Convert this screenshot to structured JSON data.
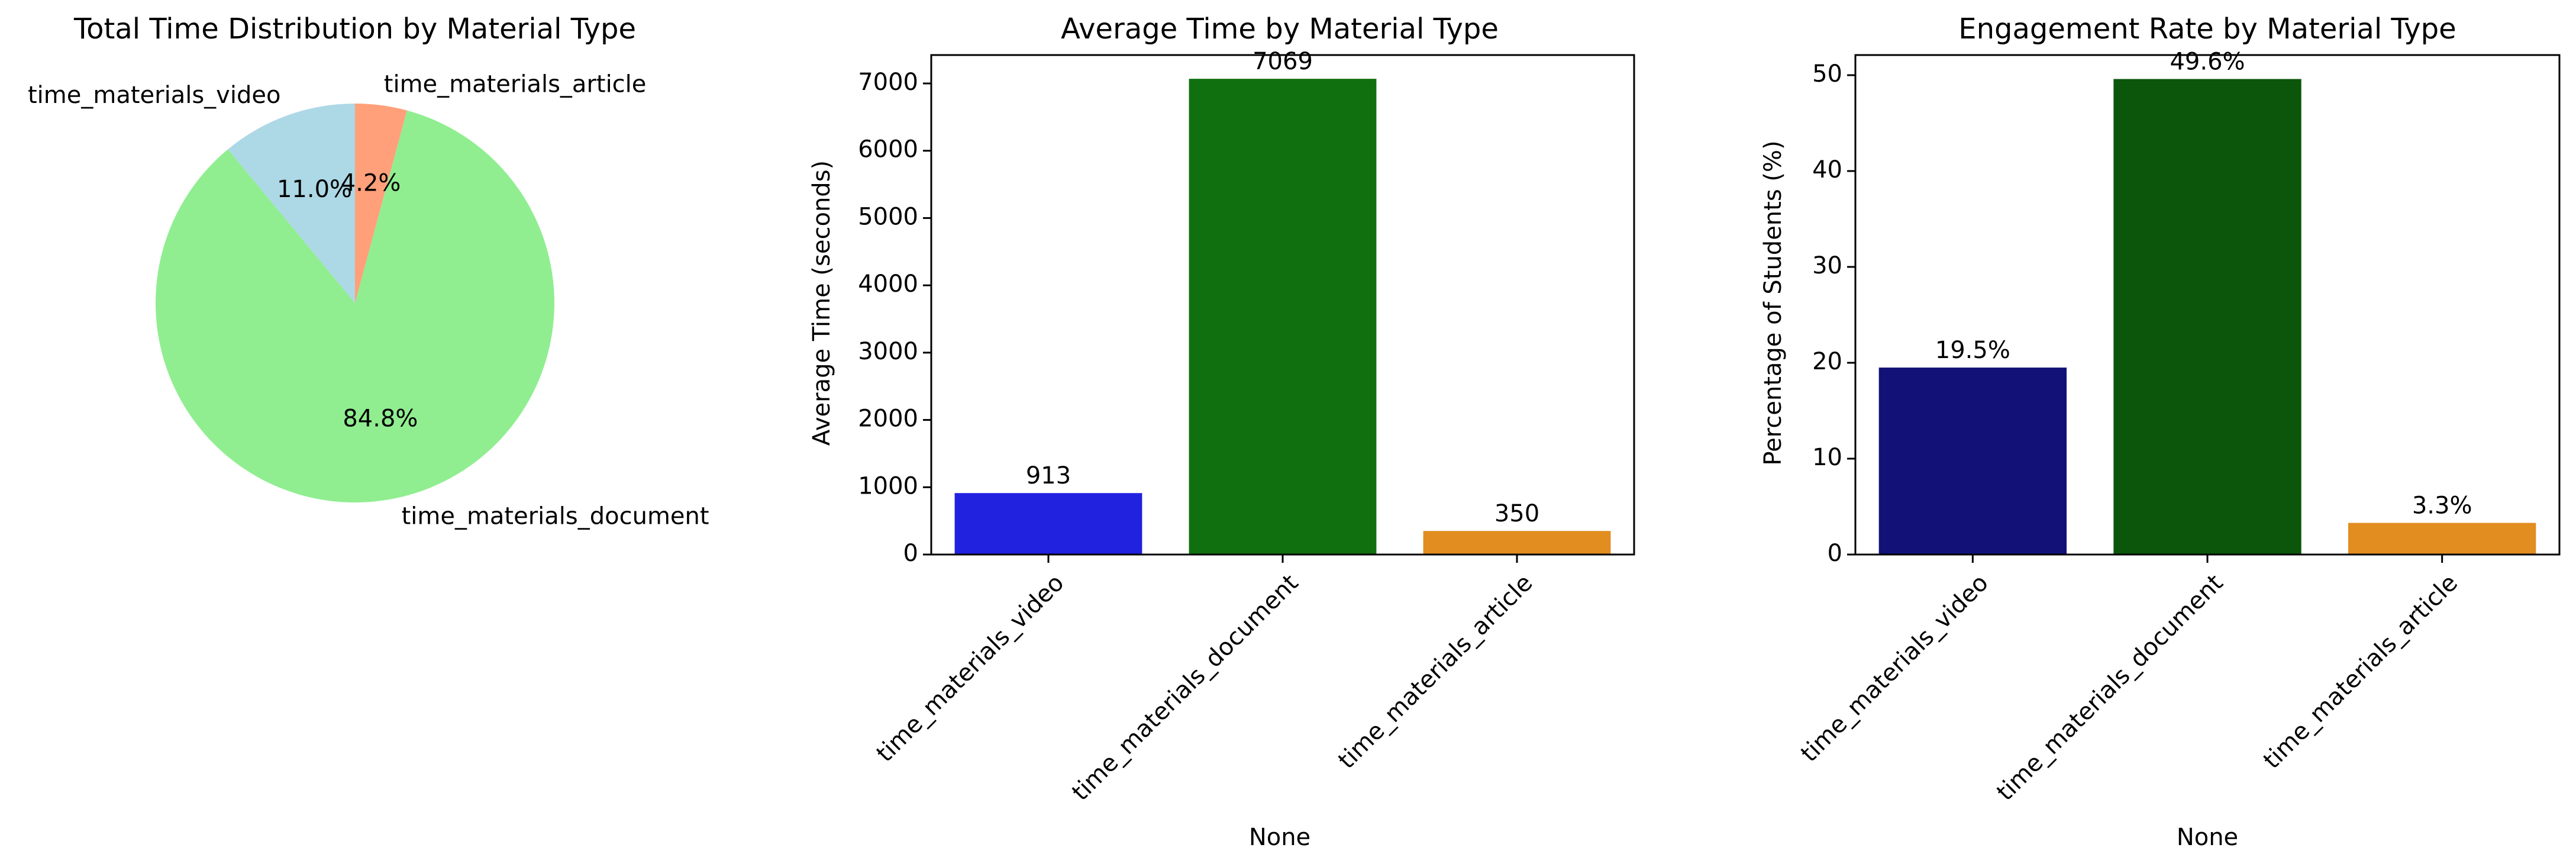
{
  "chart_data": [
    {
      "type": "pie",
      "title": "Total Time Distribution by Material Type",
      "labels": [
        "time_materials_video",
        "time_materials_document",
        "time_materials_article"
      ],
      "values": [
        11.0,
        84.8,
        4.2
      ],
      "pct_labels": [
        "11.0%",
        "84.8%",
        "4.2%"
      ],
      "colors": [
        "#add8e6",
        "#90ee90",
        "#ffa07a"
      ],
      "start_angle_deg": 90,
      "direction": "counterclockwise"
    },
    {
      "type": "bar",
      "title": "Average Time by Material Type",
      "xlabel": "None",
      "ylabel": "Average Time (seconds)",
      "categories": [
        "time_materials_video",
        "time_materials_document",
        "time_materials_article"
      ],
      "values": [
        913,
        7069,
        350
      ],
      "value_labels": [
        "913",
        "7069",
        "350"
      ],
      "colors": [
        "#2121e0",
        "#107010",
        "#e28d20"
      ],
      "ylim": [
        0,
        7422
      ],
      "yticks": [
        0,
        1000,
        2000,
        3000,
        4000,
        5000,
        6000,
        7000
      ],
      "grid": false
    },
    {
      "type": "bar",
      "title": "Engagement Rate by Material Type",
      "xlabel": "None",
      "ylabel": "Percentage of Students (%)",
      "categories": [
        "time_materials_video",
        "time_materials_document",
        "time_materials_article"
      ],
      "values": [
        19.5,
        49.6,
        3.3
      ],
      "value_labels": [
        "19.5%",
        "49.6%",
        "3.3%"
      ],
      "colors": [
        "#111178",
        "#0b560b",
        "#e28d20"
      ],
      "ylim": [
        0,
        52.1
      ],
      "yticks": [
        0,
        10,
        20,
        30,
        40,
        50
      ],
      "grid": false
    }
  ]
}
